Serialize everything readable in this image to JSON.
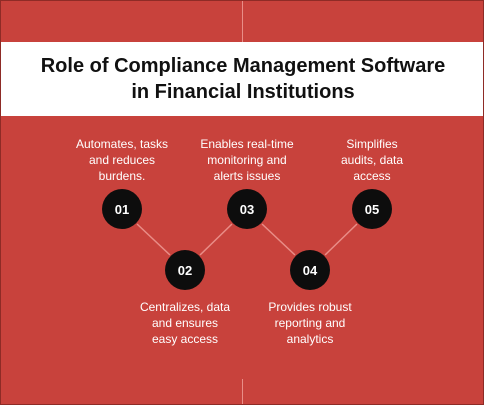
{
  "title": {
    "line1": "Role of Compliance Management Software",
    "line2": "in Financial Institutions"
  },
  "steps": [
    {
      "number": "01",
      "lines": [
        "Automates, tasks",
        "and reduces",
        "burdens."
      ]
    },
    {
      "number": "02",
      "lines": [
        "Centralizes, data",
        "and ensures",
        "easy access"
      ]
    },
    {
      "number": "03",
      "lines": [
        "Enables real-time",
        "monitoring and",
        "alerts issues"
      ]
    },
    {
      "number": "04",
      "lines": [
        "Provides robust",
        "reporting and",
        "analytics"
      ]
    },
    {
      "number": "05",
      "lines": [
        "Simplifies",
        "audits, data",
        "access"
      ]
    }
  ],
  "colors": {
    "background": "#c8423c",
    "title_band": "#ffffff",
    "node": "#0d0d0d",
    "connector": "#e98d87"
  }
}
